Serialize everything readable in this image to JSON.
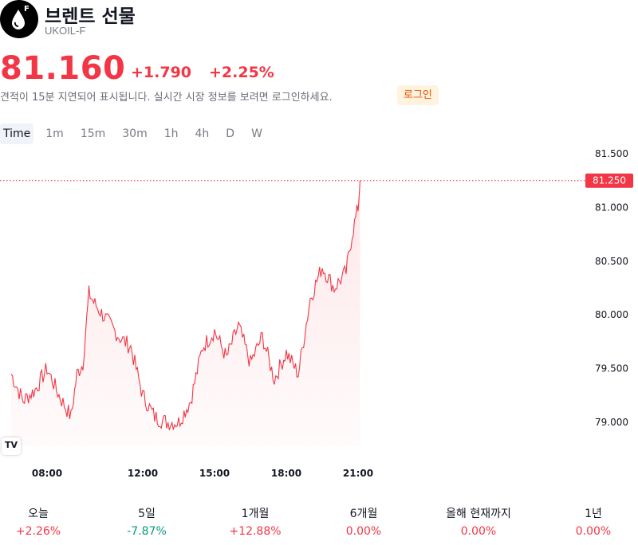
{
  "symbol": {
    "logo_letter": "F",
    "logo_icon": "oil-drop-icon",
    "name": "브렌트 선물",
    "ticker": "UKOIL-F"
  },
  "quote": {
    "price": "81.160",
    "change": "+1.790",
    "change_pct": "+2.25%",
    "delay_notice": "견적이 15분 지연되어 표시됩니다. 실시간 시장 정보를 보려면 로그인하세요.",
    "login_label": "로그인"
  },
  "timeframes": [
    "Time",
    "1m",
    "15m",
    "30m",
    "1h",
    "4h",
    "D",
    "W"
  ],
  "active_timeframe": "Time",
  "colors": {
    "up": "#f23645",
    "down": "#089981",
    "line": "#f23645",
    "accent_orange": "#e65100"
  },
  "chart_data": {
    "type": "line",
    "x_tick_labels": [
      "08:00",
      "12:00",
      "15:00",
      "18:00",
      "21:00"
    ],
    "y_tick_labels": [
      "81.500",
      "81.000",
      "80.500",
      "80.000",
      "79.500",
      "79.000"
    ],
    "ylim": [
      78.85,
      81.75
    ],
    "last_value_label": "81.250",
    "series": [
      {
        "x": [
          "06:30",
          "07:00",
          "07:30",
          "08:00",
          "08:30",
          "09:00",
          "09:15",
          "09:30",
          "09:45",
          "10:00",
          "10:30",
          "11:00",
          "11:30",
          "12:00",
          "12:30",
          "13:00",
          "13:30",
          "14:00",
          "14:30",
          "15:00",
          "15:30",
          "16:00",
          "16:30",
          "17:00",
          "17:30",
          "18:00",
          "18:30",
          "19:00",
          "19:30",
          "20:00",
          "20:30",
          "20:45",
          "21:00",
          "21:05"
        ],
        "values": [
          79.45,
          79.2,
          79.3,
          79.5,
          79.25,
          79.05,
          79.45,
          79.55,
          80.2,
          80.1,
          79.95,
          79.8,
          79.7,
          79.25,
          79.05,
          79.0,
          79.0,
          79.2,
          79.7,
          79.85,
          79.6,
          79.9,
          79.55,
          79.8,
          79.4,
          79.65,
          79.45,
          80.15,
          80.45,
          80.25,
          80.4,
          80.75,
          81.0,
          81.25
        ]
      }
    ]
  },
  "performance": [
    {
      "label": "오늘",
      "value": "+2.26%",
      "dir": "up"
    },
    {
      "label": "5일",
      "value": "-7.87%",
      "dir": "down"
    },
    {
      "label": "1개월",
      "value": "+12.88%",
      "dir": "up"
    },
    {
      "label": "6개월",
      "value": "0.00%",
      "dir": "up"
    },
    {
      "label": "올해 현재까지",
      "value": "0.00%",
      "dir": "up"
    },
    {
      "label": "1년",
      "value": "0.00%",
      "dir": "up"
    }
  ]
}
